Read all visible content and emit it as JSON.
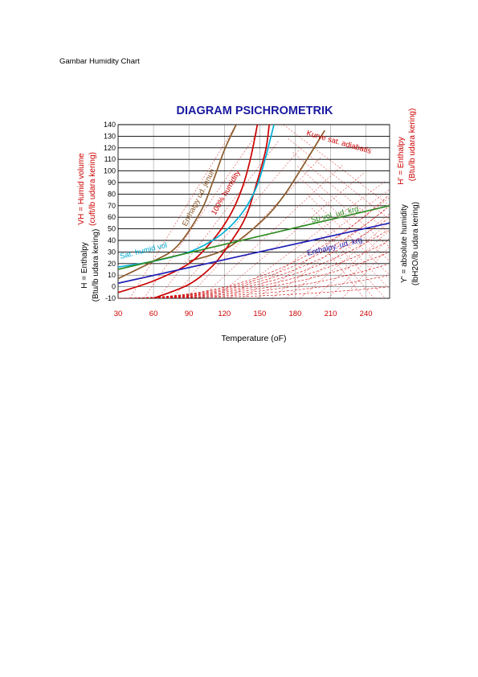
{
  "document": {
    "caption": "Gambar Humidity Chart"
  },
  "chart_data": {
    "type": "line",
    "title": "DIAGRAM PSICHROMETRIK",
    "xlabel": "Temperature (oF)",
    "left_outer_label": "VH = Humid volume",
    "left_outer_label_sub": "(cuft/lb udara kering)",
    "left_inner_label": "H = Enthalpy",
    "left_inner_label_sub": "(Btu/lb udara kering)",
    "right_outer_label": "H' = Enthalpy",
    "right_outer_label_sub": "(Btu/lb udara kering)",
    "right_inner_label": "Y' = absolute humidity",
    "right_inner_label_sub": "(lbH2O/lb udara kering)",
    "xlim": [
      30,
      260
    ],
    "ylim": [
      -10,
      140
    ],
    "x_ticks": [
      30,
      60,
      90,
      120,
      150,
      180,
      210,
      240
    ],
    "y_ticks": [
      -10,
      0,
      10,
      20,
      30,
      40,
      50,
      60,
      70,
      80,
      90,
      100,
      110,
      120,
      130,
      140
    ],
    "grid": true,
    "colors": {
      "sat_enthalpy": "#8B5A2B",
      "humidity_100": "#CC0000",
      "sat_humid_vol": "#00B0D8",
      "sp_vol": "#2E8B22",
      "enthalpy_dry": "#1F1FB4",
      "sat_adiabatic": "#CC0000",
      "grid": "#000000",
      "axis_text_red": "#CC0000",
      "title_blue": "#1A1AA0"
    },
    "series": [
      {
        "name": "Enthalpy ud. jenuh",
        "key": "sat_enthalpy",
        "x": [
          30,
          60,
          80,
          100,
          110,
          120,
          130
        ],
        "y": [
          7,
          22,
          35,
          65,
          90,
          118,
          140
        ]
      },
      {
        "name": "Enthalpy ud. jenuh",
        "key": "sat_enthalpy",
        "x": [
          90,
          120,
          150,
          170,
          190,
          205
        ],
        "y": [
          22,
          32,
          55,
          78,
          110,
          135
        ]
      },
      {
        "name": "100% humidity",
        "key": "humidity_100",
        "x": [
          30,
          60,
          90,
          110,
          125,
          135,
          142,
          148
        ],
        "y": [
          -5,
          5,
          20,
          40,
          62,
          85,
          110,
          140
        ]
      },
      {
        "name": "100% humidity",
        "key": "humidity_100",
        "x": [
          60,
          90,
          110,
          125,
          138,
          147,
          155,
          158
        ],
        "y": [
          -10,
          2,
          18,
          38,
          60,
          88,
          118,
          140
        ]
      },
      {
        "name": "Sat. humid vol",
        "key": "sat_humid_vol",
        "x": [
          30,
          60,
          90,
          110,
          125,
          138,
          148,
          155,
          162
        ],
        "y": [
          17,
          22,
          30,
          40,
          52,
          68,
          88,
          112,
          140
        ]
      },
      {
        "name": "Sp vol. ud. krg",
        "key": "sp_vol",
        "x": [
          30,
          260
        ],
        "y": [
          15,
          70
        ]
      },
      {
        "name": "Enthalpy. ud. krg",
        "key": "enthalpy_dry",
        "x": [
          30,
          260
        ],
        "y": [
          3,
          55
        ]
      }
    ],
    "annotations": [
      "Enthalpy ud. jenuh",
      "100% humidity",
      "Sat. humid vol",
      "Kurve sat. adiabatis",
      "Sp vol. ud. krg",
      "Enthalpy. ud. krg"
    ]
  }
}
